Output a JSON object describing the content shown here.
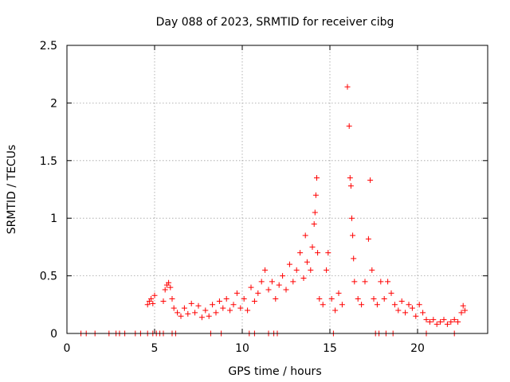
{
  "chart_data": {
    "type": "scatter",
    "title": "Day 088 of 2023, SRMTID for receiver cibg",
    "xlabel": "GPS time / hours",
    "ylabel": "SRMTID / TECUs",
    "xlim": [
      0,
      24
    ],
    "ylim": [
      0,
      2.5
    ],
    "xticks": [
      0,
      5,
      10,
      15,
      20
    ],
    "yticks": [
      0,
      0.5,
      1,
      1.5,
      2,
      2.5
    ],
    "xtick_labels": [
      "0",
      "5",
      "10",
      "15",
      "20"
    ],
    "ytick_labels": [
      "0",
      "0.5",
      "1",
      "1.5",
      "2",
      "2.5"
    ],
    "grid": true,
    "marker": "+",
    "color": "#ff0000",
    "series": [
      {
        "name": "SRMTID",
        "points": [
          [
            0.8,
            0
          ],
          [
            1.1,
            0
          ],
          [
            1.6,
            0
          ],
          [
            2.4,
            0
          ],
          [
            2.8,
            0
          ],
          [
            3.0,
            0
          ],
          [
            3.3,
            0
          ],
          [
            3.9,
            0
          ],
          [
            4.2,
            0
          ],
          [
            4.6,
            0
          ],
          [
            4.9,
            0
          ],
          [
            5.1,
            0
          ],
          [
            5.3,
            0
          ],
          [
            5.5,
            0
          ],
          [
            6.0,
            0
          ],
          [
            6.2,
            0
          ],
          [
            8.2,
            0
          ],
          [
            8.8,
            0
          ],
          [
            10.4,
            0
          ],
          [
            10.7,
            0
          ],
          [
            11.5,
            0
          ],
          [
            11.8,
            0
          ],
          [
            12.0,
            0
          ],
          [
            15.2,
            0
          ],
          [
            17.6,
            0
          ],
          [
            17.8,
            0
          ],
          [
            18.2,
            0
          ],
          [
            18.6,
            0
          ],
          [
            20.5,
            0
          ],
          [
            22.1,
            0
          ],
          [
            4.6,
            0.25
          ],
          [
            4.7,
            0.28
          ],
          [
            4.8,
            0.3
          ],
          [
            4.9,
            0.26
          ],
          [
            5.0,
            0.33
          ],
          [
            5.5,
            0.28
          ],
          [
            5.6,
            0.38
          ],
          [
            5.7,
            0.42
          ],
          [
            5.8,
            0.44
          ],
          [
            5.9,
            0.4
          ],
          [
            6.0,
            0.3
          ],
          [
            6.1,
            0.22
          ],
          [
            6.3,
            0.18
          ],
          [
            6.5,
            0.15
          ],
          [
            6.7,
            0.22
          ],
          [
            6.9,
            0.17
          ],
          [
            7.1,
            0.26
          ],
          [
            7.3,
            0.18
          ],
          [
            7.5,
            0.24
          ],
          [
            7.7,
            0.14
          ],
          [
            7.9,
            0.2
          ],
          [
            8.1,
            0.15
          ],
          [
            8.3,
            0.25
          ],
          [
            8.5,
            0.18
          ],
          [
            8.7,
            0.28
          ],
          [
            8.9,
            0.22
          ],
          [
            9.1,
            0.3
          ],
          [
            9.3,
            0.2
          ],
          [
            9.5,
            0.25
          ],
          [
            9.7,
            0.35
          ],
          [
            9.9,
            0.22
          ],
          [
            10.1,
            0.3
          ],
          [
            10.3,
            0.2
          ],
          [
            10.5,
            0.4
          ],
          [
            10.7,
            0.28
          ],
          [
            10.9,
            0.35
          ],
          [
            11.1,
            0.45
          ],
          [
            11.3,
            0.55
          ],
          [
            11.5,
            0.38
          ],
          [
            11.7,
            0.45
          ],
          [
            11.9,
            0.3
          ],
          [
            12.1,
            0.42
          ],
          [
            12.3,
            0.5
          ],
          [
            12.5,
            0.38
          ],
          [
            12.7,
            0.6
          ],
          [
            12.9,
            0.45
          ],
          [
            13.1,
            0.55
          ],
          [
            13.3,
            0.7
          ],
          [
            13.5,
            0.48
          ],
          [
            13.6,
            0.85
          ],
          [
            13.7,
            0.62
          ],
          [
            13.9,
            0.55
          ],
          [
            14.0,
            0.75
          ],
          [
            14.1,
            0.95
          ],
          [
            14.15,
            1.05
          ],
          [
            14.2,
            1.2
          ],
          [
            14.25,
            1.35
          ],
          [
            14.3,
            0.7
          ],
          [
            14.4,
            0.3
          ],
          [
            14.6,
            0.25
          ],
          [
            14.8,
            0.55
          ],
          [
            14.9,
            0.7
          ],
          [
            15.1,
            0.3
          ],
          [
            15.3,
            0.2
          ],
          [
            15.5,
            0.35
          ],
          [
            15.7,
            0.25
          ],
          [
            16.0,
            2.14
          ],
          [
            16.1,
            1.8
          ],
          [
            16.15,
            1.35
          ],
          [
            16.2,
            1.28
          ],
          [
            16.25,
            1.0
          ],
          [
            16.3,
            0.85
          ],
          [
            16.35,
            0.65
          ],
          [
            16.4,
            0.45
          ],
          [
            16.6,
            0.3
          ],
          [
            16.8,
            0.25
          ],
          [
            17.0,
            0.45
          ],
          [
            17.2,
            0.82
          ],
          [
            17.3,
            1.33
          ],
          [
            17.4,
            0.55
          ],
          [
            17.5,
            0.3
          ],
          [
            17.7,
            0.25
          ],
          [
            17.9,
            0.45
          ],
          [
            18.1,
            0.3
          ],
          [
            18.3,
            0.45
          ],
          [
            18.5,
            0.35
          ],
          [
            18.7,
            0.25
          ],
          [
            18.9,
            0.2
          ],
          [
            19.1,
            0.28
          ],
          [
            19.3,
            0.18
          ],
          [
            19.5,
            0.25
          ],
          [
            19.7,
            0.22
          ],
          [
            19.9,
            0.15
          ],
          [
            20.1,
            0.25
          ],
          [
            20.3,
            0.18
          ],
          [
            20.5,
            0.12
          ],
          [
            20.7,
            0.1
          ],
          [
            20.9,
            0.12
          ],
          [
            21.1,
            0.08
          ],
          [
            21.3,
            0.1
          ],
          [
            21.5,
            0.12
          ],
          [
            21.7,
            0.08
          ],
          [
            21.9,
            0.1
          ],
          [
            22.1,
            0.12
          ],
          [
            22.3,
            0.1
          ],
          [
            22.5,
            0.18
          ],
          [
            22.6,
            0.24
          ],
          [
            22.7,
            0.2
          ]
        ]
      }
    ]
  }
}
